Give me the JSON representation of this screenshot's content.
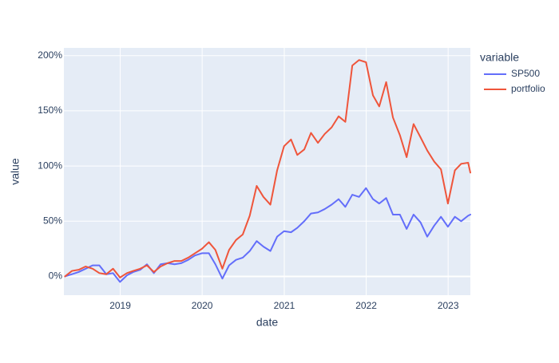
{
  "chart_data": {
    "type": "line",
    "xlabel": "date",
    "ylabel": "value",
    "x_range": [
      "2018-04-25",
      "2023-04-10"
    ],
    "ylim": [
      -17,
      207
    ],
    "x_tick_labels": [
      "2019",
      "2020",
      "2021",
      "2022",
      "2023"
    ],
    "x_tick_dates": [
      "2019-01-01",
      "2020-01-01",
      "2021-01-01",
      "2022-01-01",
      "2023-01-01"
    ],
    "y_ticks": [
      0,
      50,
      100,
      150,
      200
    ],
    "y_tick_labels": [
      "0%",
      "50%",
      "100%",
      "150%",
      "200%"
    ],
    "grid": true,
    "legend": {
      "title": "variable",
      "placement": "right"
    },
    "colors": {
      "plot_bg": "#e5ecf6",
      "grid": "#ffffff",
      "text": "#2a3f5f"
    },
    "x": [
      "2018-04-30",
      "2018-05-31",
      "2018-06-30",
      "2018-07-31",
      "2018-08-31",
      "2018-09-30",
      "2018-10-31",
      "2018-11-30",
      "2018-12-31",
      "2019-01-31",
      "2019-02-28",
      "2019-03-31",
      "2019-04-30",
      "2019-05-31",
      "2019-06-30",
      "2019-07-31",
      "2019-08-31",
      "2019-09-30",
      "2019-10-31",
      "2019-11-30",
      "2019-12-31",
      "2020-01-31",
      "2020-02-29",
      "2020-03-31",
      "2020-04-30",
      "2020-05-31",
      "2020-06-30",
      "2020-07-31",
      "2020-08-31",
      "2020-09-30",
      "2020-10-31",
      "2020-11-30",
      "2020-12-31",
      "2021-01-31",
      "2021-02-28",
      "2021-03-31",
      "2021-04-30",
      "2021-05-31",
      "2021-06-30",
      "2021-07-31",
      "2021-08-31",
      "2021-09-30",
      "2021-10-31",
      "2021-11-30",
      "2021-12-31",
      "2022-01-31",
      "2022-02-28",
      "2022-03-31",
      "2022-04-30",
      "2022-05-31",
      "2022-06-30",
      "2022-07-31",
      "2022-08-31",
      "2022-09-30",
      "2022-10-31",
      "2022-11-30",
      "2022-12-31",
      "2023-01-31",
      "2023-02-28",
      "2023-03-31",
      "2023-04-10"
    ],
    "series": [
      {
        "name": "SP500",
        "color": "#636efa",
        "values": [
          0,
          2,
          4,
          7,
          10,
          10,
          2,
          3,
          -5,
          1,
          4,
          6,
          11,
          3,
          11,
          12,
          11,
          12,
          15,
          19,
          21,
          21,
          11,
          -2,
          10,
          15,
          17,
          23,
          32,
          27,
          23,
          36,
          41,
          40,
          44,
          50,
          57,
          58,
          61,
          65,
          70,
          63,
          74,
          72,
          80,
          70,
          66,
          71,
          56,
          56,
          43,
          56,
          49,
          36,
          46,
          54,
          45,
          54,
          50,
          55,
          56
        ]
      },
      {
        "name": "portfolio",
        "color": "#ef553b",
        "values": [
          0,
          5,
          6,
          9,
          7,
          3,
          2,
          7,
          -1,
          3,
          5,
          7,
          10,
          4,
          9,
          12,
          14,
          14,
          17,
          21,
          25,
          31,
          24,
          7,
          24,
          33,
          38,
          55,
          82,
          72,
          65,
          96,
          118,
          124,
          110,
          115,
          130,
          121,
          129,
          135,
          145,
          140,
          191,
          196,
          194,
          164,
          154,
          176,
          144,
          128,
          108,
          138,
          126,
          114,
          104,
          97,
          66,
          96,
          102,
          103,
          94
        ]
      }
    ]
  }
}
